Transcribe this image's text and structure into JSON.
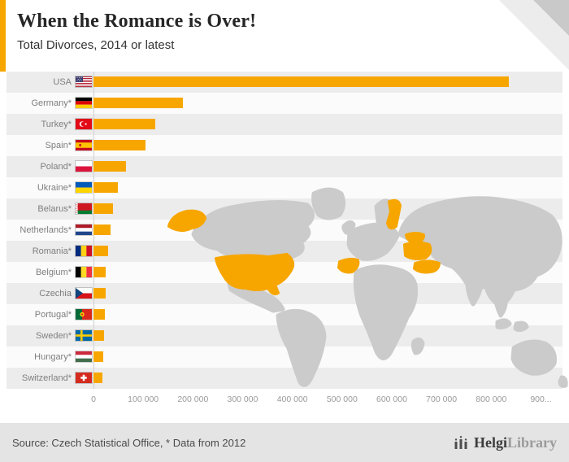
{
  "header": {
    "title": "When the Romance is Over!",
    "subtitle": "Total Divorces, 2014 or latest"
  },
  "chart_data": {
    "type": "bar",
    "orientation": "horizontal",
    "title": "When the Romance is Over!",
    "subtitle": "Total Divorces, 2014 or latest",
    "categories": [
      "USA",
      "Germany*",
      "Turkey*",
      "Spain*",
      "Poland*",
      "Ukraine*",
      "Belarus*",
      "Netherlands*",
      "Romania*",
      "Belgium*",
      "Czechia",
      "Portugal*",
      "Sweden*",
      "Hungary*",
      "Switzerland*"
    ],
    "values": [
      835000,
      180000,
      125000,
      104000,
      66000,
      49000,
      39000,
      35000,
      29000,
      25000,
      24000,
      23000,
      21000,
      20000,
      17500
    ],
    "flags": [
      "usa",
      "germany",
      "turkey",
      "spain",
      "poland",
      "ukraine",
      "belarus",
      "netherlands",
      "romania",
      "belgium",
      "czechia",
      "portugal",
      "sweden",
      "hungary",
      "switzerland"
    ],
    "xlabel": "",
    "ylabel": "",
    "xlim": [
      0,
      927000
    ],
    "x_ticks": [
      0,
      100000,
      200000,
      300000,
      400000,
      500000,
      600000,
      700000,
      800000,
      900000
    ],
    "x_tick_labels": [
      "0",
      "100 000",
      "200 000",
      "300 000",
      "400 000",
      "500 000",
      "600 000",
      "700 000",
      "800 000",
      "900..."
    ],
    "grid": false,
    "legend": "none",
    "bar_color": "#F7A600",
    "background_map": "world map, gray, with USA, Sweden, Belarus, Ukraine, Spain and Turkey highlighted in orange"
  },
  "footer": {
    "source": "Source: Czech Statistical Office, * Data from 2012",
    "logo": {
      "icon": "helgi-logo-icon",
      "text_primary": "Helgi",
      "text_secondary": "Library"
    }
  },
  "colors": {
    "accent": "#F7A600",
    "map_base": "#cbcbcb",
    "row_alt": "#ececec",
    "row_base": "#fbfbfb",
    "footer_bg": "#e4e4e4",
    "axis_text": "#9a9a9a"
  }
}
